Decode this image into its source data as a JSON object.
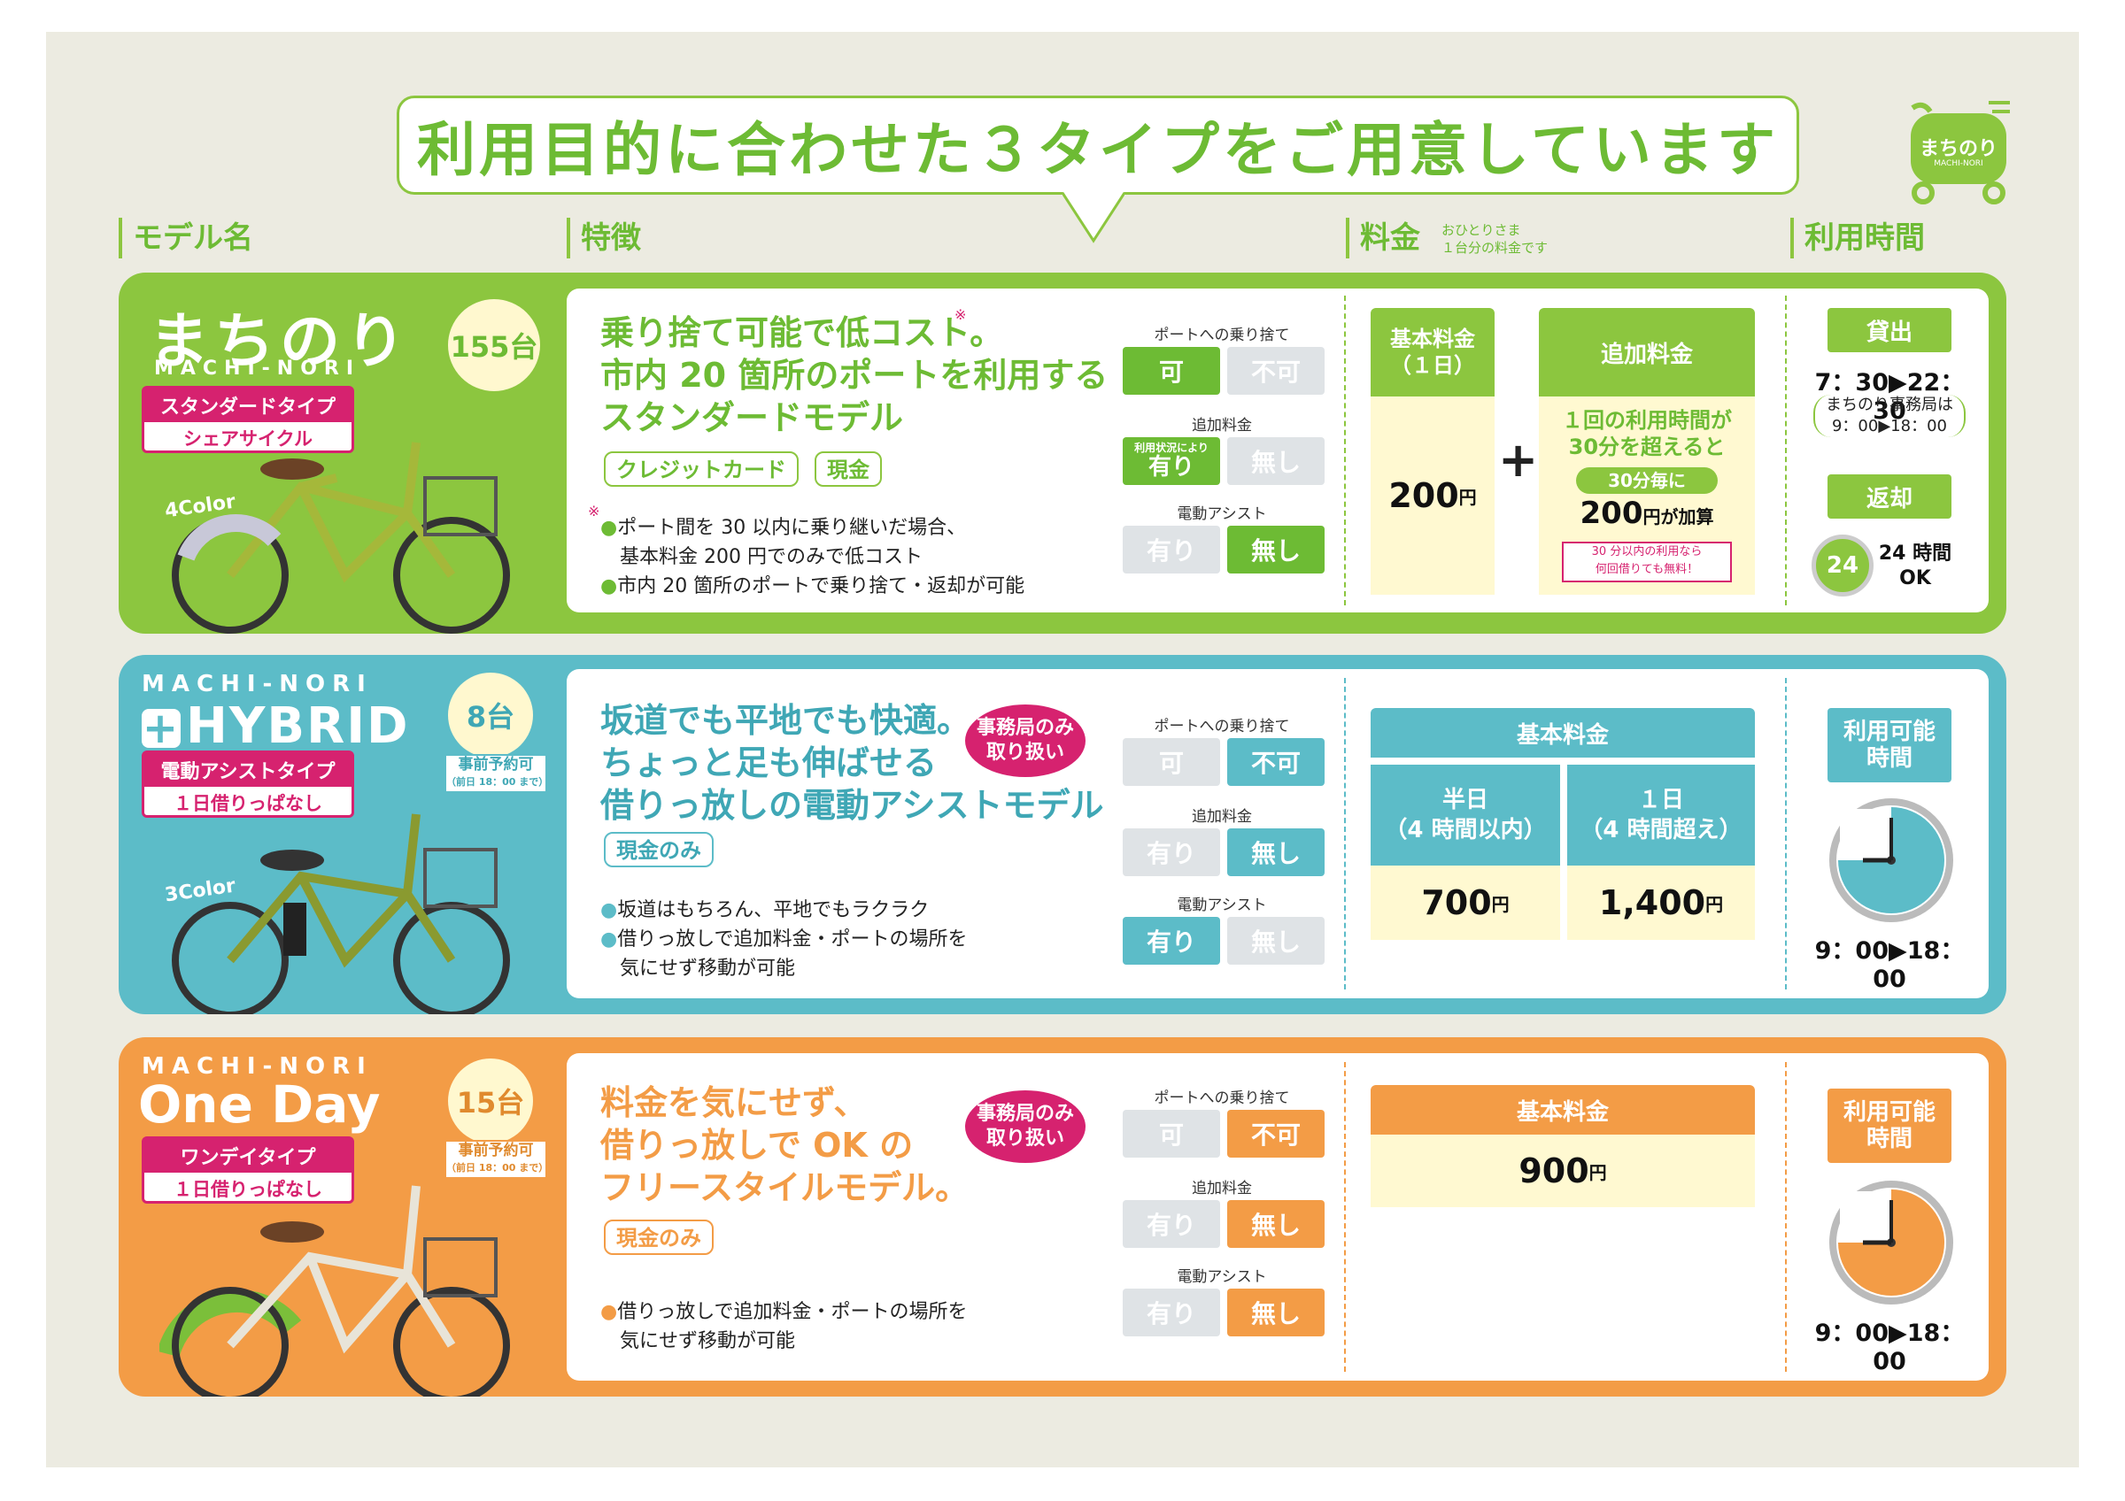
{
  "header": {
    "title": "利用目的に合わせた３タイプをご用意しています",
    "col_model": "モデル名",
    "col_features": "特徴",
    "col_fee": "料金",
    "col_fee_note1": "おひとりさま",
    "col_fee_note2": "１台分の料金です",
    "col_time": "利用時間",
    "logo_text": "まちのり",
    "logo_sub": "MACHI-NORI"
  },
  "colors": {
    "green": "#8cc63f",
    "blue": "#5cbcc8",
    "orange": "#f39c46",
    "magenta": "#d6226f",
    "cream": "#fff9d1"
  },
  "rows": [
    {
      "brand": "まちのり",
      "brand_sub": "MACHI-NORI",
      "count": "155台",
      "type_main": "スタンダードタイプ",
      "type_sub": "シェアサイクル",
      "color_count": "4Color",
      "title_lines": [
        "乗り捨て可能で低コスト。",
        "市内 20 箇所のポートを利用する",
        "スタンダードモデル"
      ],
      "title_mark": "※",
      "payments": [
        "クレジットカード",
        "現金"
      ],
      "note_mark": "※",
      "bullets": [
        "ポート間を 30 以内に乗り継いだ場合、",
        "基本料金 200 円でのみで低コスト",
        "市内 20 箇所のポートで乗り捨て・返却が可能"
      ],
      "opt_dropoff_label": "ポートへの乗り捨て",
      "opt_dropoff": [
        "可",
        "不可"
      ],
      "opt_extra_label": "追加料金",
      "opt_extra_note": "利用状況により",
      "opt_extra": [
        "有り",
        "無し"
      ],
      "opt_assist_label": "電動アシスト",
      "opt_assist": [
        "有り",
        "無し"
      ],
      "fee_base_label": "基本料金\n（１日）",
      "fee_base_value": "200",
      "fee_plus": "+",
      "fee_extra_label": "追加料金",
      "fee_extra_line1": "１回の利用時間が",
      "fee_extra_line2": "30分を超えると",
      "fee_extra_badge": "30分毎に",
      "fee_extra_value": "200",
      "fee_extra_suffix": "円が加算",
      "fee_extra_free1": "30 分以内の利用なら",
      "fee_extra_free2": "何回借りても無料！",
      "yen": "円",
      "rent_label": "貸出",
      "rent_time": "7：30▶22：30",
      "office_note1": "まちのり事務局は",
      "office_note2": "9：00▶18：00",
      "return_label": "返却",
      "return_badge": "24",
      "return_text1": "24 時間",
      "return_text2": "OK"
    },
    {
      "brand_top": "MACHI-NORI",
      "brand": "HYBRID",
      "count": "8台",
      "prebook1": "事前予約可",
      "prebook2": "（前日 18：00 まで）",
      "type_main": "電動アシストタイプ",
      "type_sub": "１日借りっぱなし",
      "color_count": "3Color",
      "callout": "事務局のみ\n取り扱い",
      "title_lines": [
        "坂道でも平地でも快適。",
        "ちょっと足も伸ばせる",
        "借りっ放しの電動アシストモデル"
      ],
      "payments": [
        "現金のみ"
      ],
      "bullets": [
        "坂道はもちろん、平地でもラクラク",
        "借りっ放しで追加料金・ポートの場所を",
        "気にせず移動が可能"
      ],
      "opt_dropoff_label": "ポートへの乗り捨て",
      "opt_dropoff": [
        "可",
        "不可"
      ],
      "opt_extra_label": "追加料金",
      "opt_extra": [
        "有り",
        "無し"
      ],
      "opt_assist_label": "電動アシスト",
      "opt_assist": [
        "有り",
        "無し"
      ],
      "fee_base_label": "基本料金",
      "fee_half_label": "半日\n（4 時間以内）",
      "fee_half_value": "700",
      "fee_full_label": "１日\n（4 時間超え）",
      "fee_full_value": "1,400",
      "yen": "円",
      "time_label": "利用可能\n時間",
      "time_text": "9：00▶18：00"
    },
    {
      "brand_top": "MACHI-NORI",
      "brand": "One Day",
      "count": "15台",
      "prebook1": "事前予約可",
      "prebook2": "（前日 18：00 まで）",
      "type_main": "ワンデイタイプ",
      "type_sub": "１日借りっぱなし",
      "callout": "事務局のみ\n取り扱い",
      "title_lines": [
        "料金を気にせず、",
        "借りっ放しで OK の",
        "フリースタイルモデル。"
      ],
      "payments": [
        "現金のみ"
      ],
      "bullets": [
        "借りっ放しで追加料金・ポートの場所を",
        "気にせず移動が可能"
      ],
      "opt_dropoff_label": "ポートへの乗り捨て",
      "opt_dropoff": [
        "可",
        "不可"
      ],
      "opt_extra_label": "追加料金",
      "opt_extra": [
        "有り",
        "無し"
      ],
      "opt_assist_label": "電動アシスト",
      "opt_assist": [
        "有り",
        "無し"
      ],
      "fee_base_label": "基本料金",
      "fee_base_value": "900",
      "yen": "円",
      "time_label": "利用可能\n時間",
      "time_text": "9：00▶18：00"
    }
  ]
}
